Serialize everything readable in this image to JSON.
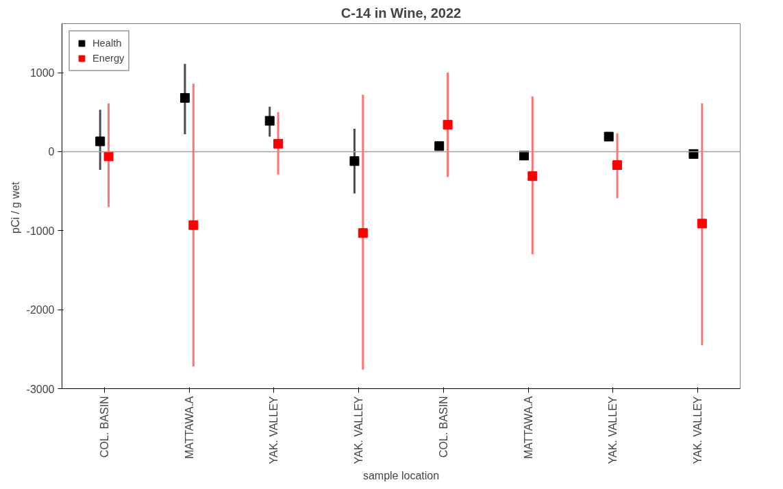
{
  "chart_data": {
    "type": "scatter",
    "title": "C-14 in Wine, 2022",
    "xlabel": "sample location",
    "ylabel": "pCi / g  wet",
    "categories": [
      "COL. BASIN",
      "MATTAWA.A",
      "YAK. VALLEY",
      "YAK. VALLEY",
      "COL. BASIN",
      "MATTAWA.A",
      "YAK. VALLEY",
      "YAK. VALLEY"
    ],
    "series": [
      {
        "name": "Health",
        "color": "#000000",
        "values": [
          130,
          680,
          390,
          -120,
          70,
          -50,
          190,
          -30
        ],
        "errors": [
          [
            -230,
            530
          ],
          [
            220,
            1110
          ],
          [
            190,
            570
          ],
          [
            -530,
            290
          ],
          null,
          null,
          [
            150,
            230
          ],
          null
        ]
      },
      {
        "name": "Energy",
        "color": "#ff0000",
        "values": [
          -60,
          -930,
          100,
          -1030,
          340,
          -310,
          -170,
          -910
        ],
        "errors": [
          [
            -700,
            610
          ],
          [
            -2720,
            860
          ],
          [
            -290,
            500
          ],
          [
            -2760,
            720
          ],
          [
            -320,
            1000
          ],
          [
            -1300,
            700
          ],
          [
            -590,
            230
          ],
          [
            -2450,
            610
          ]
        ]
      }
    ],
    "ylim": [
      -3000,
      1620
    ],
    "yticks": [
      -3000,
      -2000,
      -1000,
      0,
      1000
    ],
    "ref_lines": [
      {
        "axis": "y",
        "value": 0,
        "color": "#a0a0a0"
      }
    ],
    "marker": "square",
    "grid": false,
    "legend": "top left"
  }
}
